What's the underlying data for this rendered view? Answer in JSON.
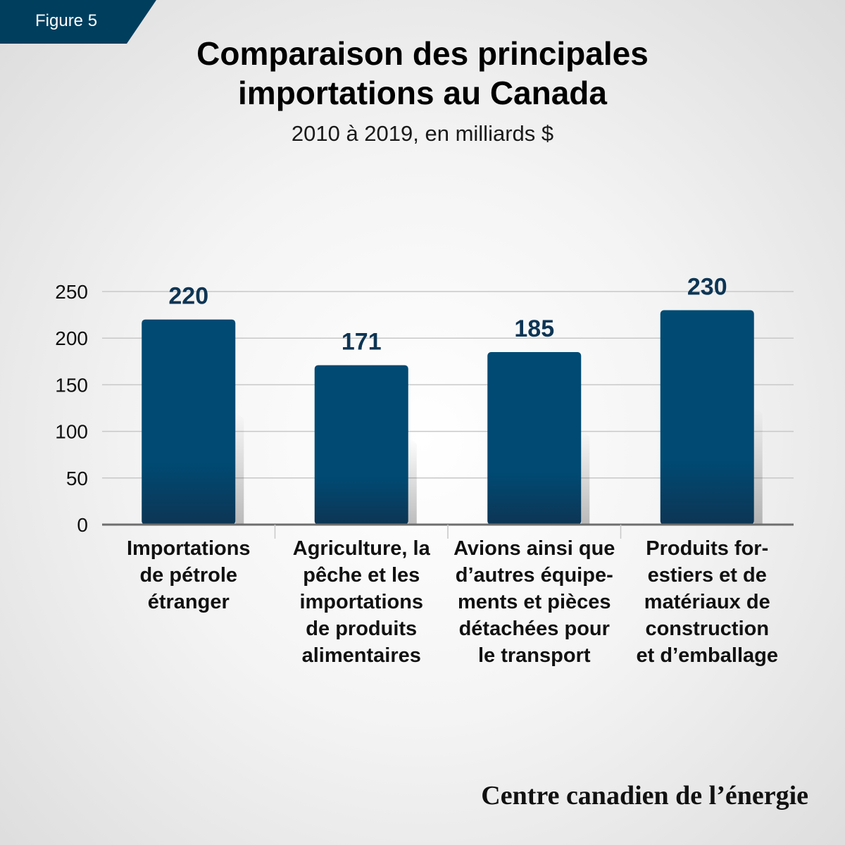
{
  "figure_label": "Figure 5",
  "title": "Comparaison des principales importations au Canada",
  "subtitle": "2010 à 2019, en milliards $",
  "credit": "Centre canadien de l’énergie",
  "colors": {
    "bar": "#004a73",
    "bar_dark": "#0d3554",
    "tag": "#003e5e",
    "value_label": "#0d3554"
  },
  "chart_data": {
    "type": "bar",
    "categories": [
      "Importations\nde pétrole\nétranger",
      "Agriculture, la\npêche et les\nimportations\nde produits\nalimentaires",
      "Avions ainsi que\nd’autres équipe-\nments et pièces\ndétachées pour\nle transport",
      "Produits for-\nestiers et de\nmatériaux de\nconstruction\net d’emballage"
    ],
    "values": [
      220,
      171,
      185,
      230
    ],
    "value_labels": [
      "220",
      "171",
      "185",
      "230"
    ],
    "yticks": [
      0,
      50,
      100,
      150,
      200,
      250
    ],
    "ylim": [
      0,
      250
    ],
    "grid": true,
    "title": "Comparaison des principales importations au Canada",
    "subtitle": "2010 à 2019, en milliards $"
  }
}
